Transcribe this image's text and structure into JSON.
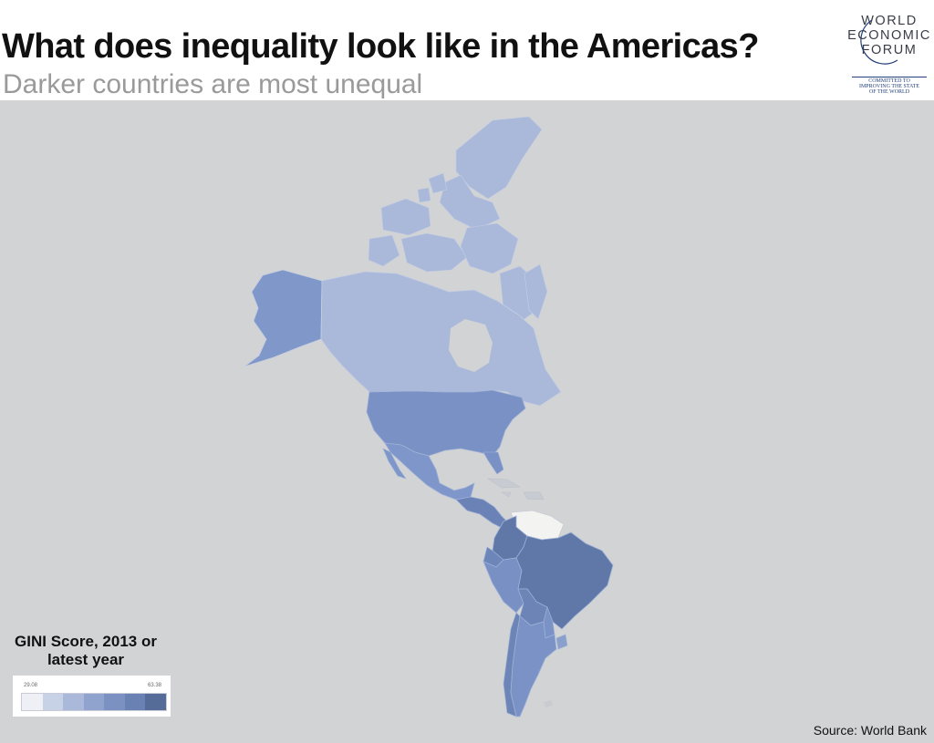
{
  "header": {
    "title": "What does inequality look like in the Americas?",
    "subtitle": "Darker countries are most unequal"
  },
  "logo": {
    "line1": "WORLD",
    "line2": "ECONOMIC",
    "line3": "FORUM",
    "tagline1": "COMMITTED TO",
    "tagline2": "IMPROVING THE STATE",
    "tagline3": "OF THE WORLD"
  },
  "legend": {
    "title": "GINI Score, 2013 or latest year",
    "min": "29.08",
    "max": "63.38",
    "scale": [
      "#eef0f6",
      "#c8d2e6",
      "#aab9da",
      "#8fa3ce",
      "#7a91c2",
      "#6a81b3",
      "#566c98"
    ]
  },
  "source": "Source: World Bank",
  "colors": {
    "ocean": "#d1d3d4",
    "no_data": "#f3f3f1",
    "canada": "#aab9da",
    "alaska": "#7f97c9",
    "usa": "#7a91c6",
    "mexico": "#7e96c9",
    "central_america": "#6a82b5",
    "colombia_brazil": "#5f78a8",
    "south_america": "#7a92c5"
  }
}
